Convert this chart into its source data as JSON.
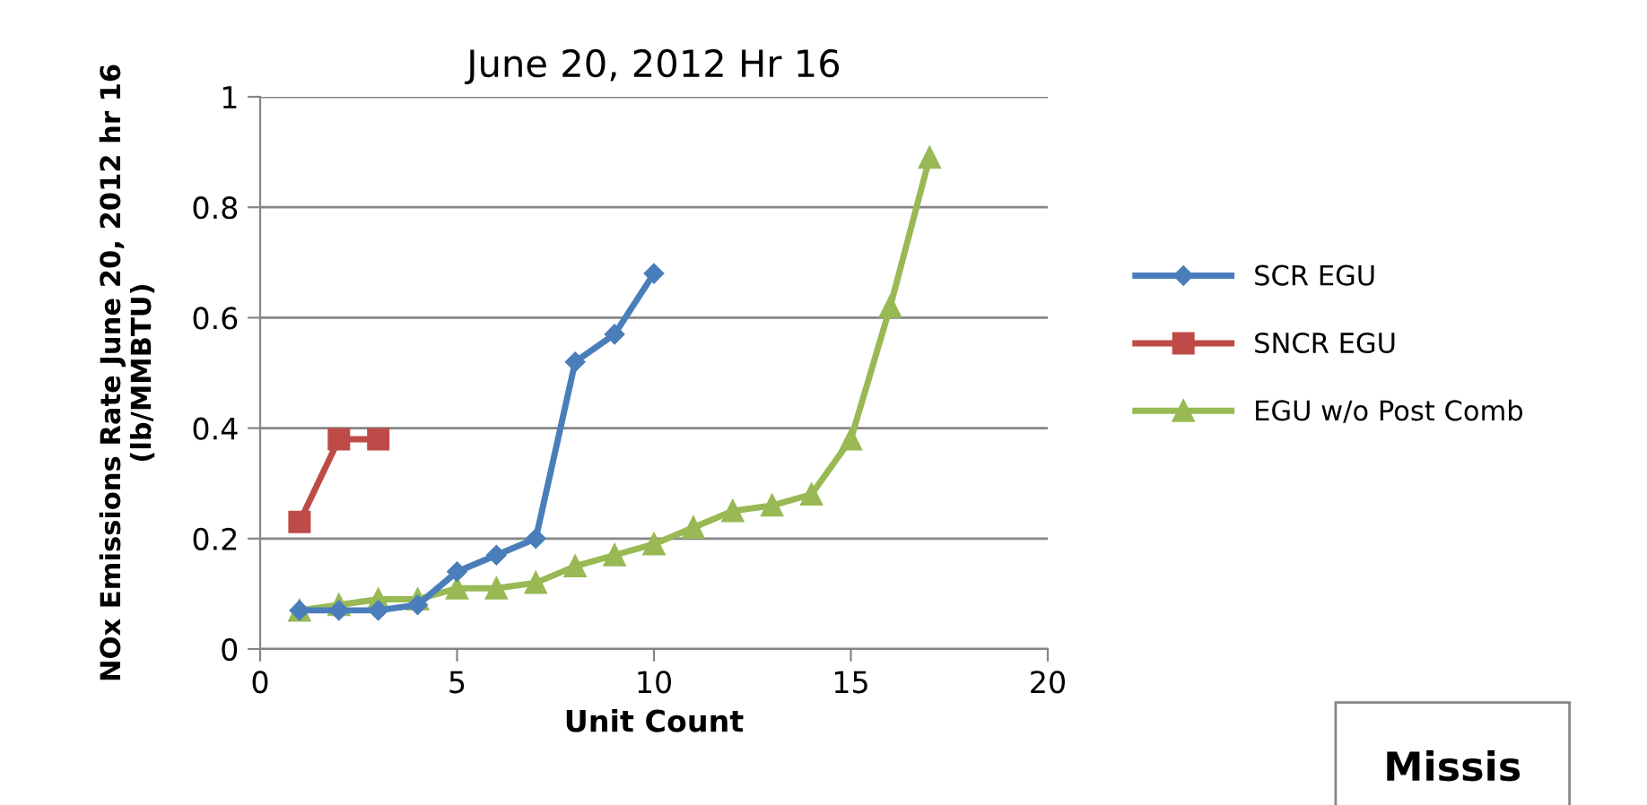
{
  "chart_data": {
    "type": "line",
    "title": "June 20, 2012 Hr 16",
    "xlabel": "Unit Count",
    "ylabel": "NOx Emissions Rate June 20, 2012 hr 16\n(lb/MMBTU)",
    "xlim": [
      0,
      20
    ],
    "xticks": [
      0,
      5,
      10,
      15,
      20
    ],
    "ylim": [
      0,
      1
    ],
    "yticks": [
      0,
      0.2,
      0.4,
      0.6,
      0.8,
      1
    ],
    "grid": "y",
    "legend": "right",
    "annotations": [
      "Missis"
    ],
    "series": [
      {
        "name": "SCR EGU",
        "color": "#4a7ebb",
        "marker": "diamond",
        "x": [
          1,
          2,
          3,
          4,
          5,
          6,
          7,
          8,
          9,
          10
        ],
        "values": [
          0.07,
          0.07,
          0.07,
          0.08,
          0.14,
          0.17,
          0.2,
          0.52,
          0.57,
          0.68
        ]
      },
      {
        "name": "SNCR EGU",
        "color": "#be4b48",
        "marker": "square",
        "x": [
          1,
          2,
          3
        ],
        "values": [
          0.23,
          0.38,
          0.38
        ]
      },
      {
        "name": "EGU w/o Post Comb",
        "color": "#98b954",
        "marker": "triangle",
        "x": [
          1,
          2,
          3,
          4,
          5,
          6,
          7,
          8,
          9,
          10,
          11,
          12,
          13,
          14,
          15,
          16,
          17
        ],
        "values": [
          0.07,
          0.08,
          0.09,
          0.09,
          0.11,
          0.11,
          0.12,
          0.15,
          0.17,
          0.19,
          0.22,
          0.25,
          0.26,
          0.28,
          0.38,
          0.62,
          0.89
        ]
      }
    ]
  }
}
